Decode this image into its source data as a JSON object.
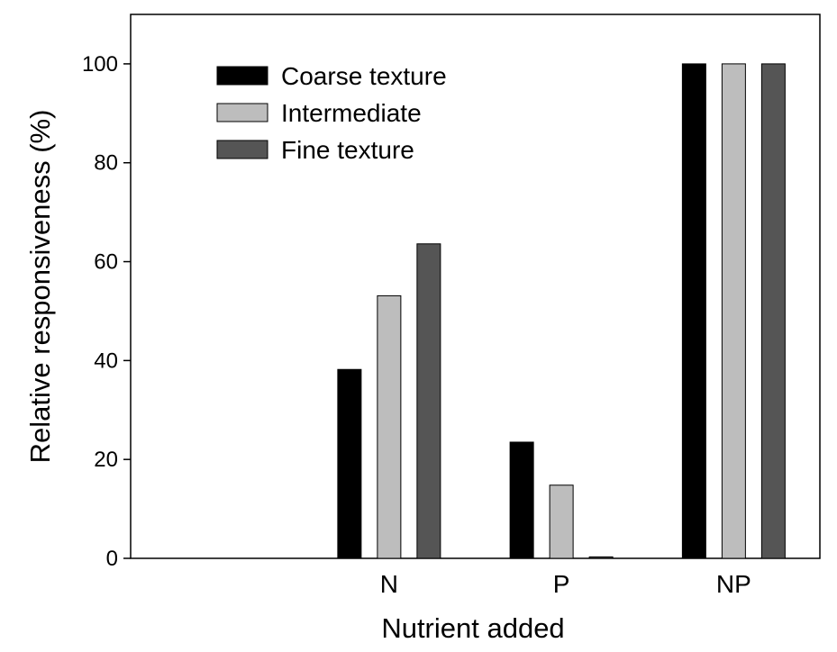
{
  "chart_data": {
    "type": "bar",
    "xlabel": "Nutrient added",
    "ylabel": "Relative responsiveness (%)",
    "ylim": [
      0,
      110
    ],
    "yticks": [
      "0",
      "20",
      "40",
      "60",
      "80",
      "100"
    ],
    "categories": [
      "",
      "N",
      "P",
      "NP"
    ],
    "series": [
      {
        "name": "Coarse texture",
        "color": "#000000",
        "values": [
          null,
          38.2,
          23.5,
          100
        ]
      },
      {
        "name": "Intermediate",
        "color": "#bdbdbd",
        "values": [
          null,
          53.1,
          14.8,
          100
        ]
      },
      {
        "name": "Fine texture",
        "color": "#555555",
        "values": [
          null,
          63.6,
          0.3,
          100
        ]
      }
    ],
    "legend_position": "top-left",
    "grid": false
  }
}
